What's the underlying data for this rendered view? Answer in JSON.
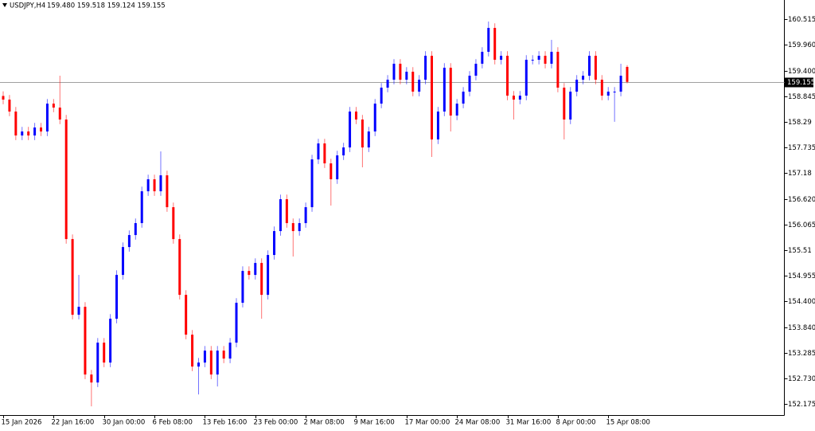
{
  "chart_data": {
    "type": "candlestick",
    "title": "USDJPY,H4",
    "subtitle": "159.480 159.518 159.124 159.155",
    "up_color": "#0000ff",
    "down_color": "#ff0000",
    "current_price": 159.155,
    "ylim": [
      151.933,
      160.93
    ],
    "yticks": [
      160.515,
      {
        "value": 159.96,
        "label": "159.960"
      },
      {
        "value": 159.4,
        "label": "159.400"
      },
      158.845,
      158.29,
      157.735,
      157.18,
      {
        "value": 156.62,
        "label": "156.620"
      },
      156.065,
      155.51,
      154.955,
      {
        "value": 154.4,
        "label": "154.400"
      },
      {
        "value": 153.84,
        "label": "153.840"
      },
      153.285,
      {
        "value": 152.73,
        "label": "152.730"
      },
      152.175
    ],
    "categories": [
      "15 Jan 2026",
      null,
      null,
      null,
      null,
      null,
      null,
      null,
      "22 Jan 16:00",
      null,
      null,
      null,
      null,
      null,
      null,
      null,
      "30 Jan 00:00",
      null,
      null,
      null,
      null,
      null,
      null,
      null,
      "6 Feb 08:00",
      null,
      null,
      null,
      null,
      null,
      null,
      null,
      "13 Feb 16:00",
      null,
      null,
      null,
      null,
      null,
      null,
      null,
      "23 Feb 00:00",
      null,
      null,
      null,
      null,
      null,
      null,
      null,
      "2 Mar 08:00",
      null,
      null,
      null,
      null,
      null,
      null,
      null,
      "9 Mar 16:00",
      null,
      null,
      null,
      null,
      null,
      null,
      null,
      "17 Mar 00:00",
      null,
      null,
      null,
      null,
      null,
      null,
      null,
      "24 Mar 08:00",
      null,
      null,
      null,
      null,
      null,
      null,
      null,
      "31 Mar 16:00",
      null,
      null,
      null,
      null,
      null,
      null,
      null,
      "8 Apr 00:00",
      null,
      null,
      null,
      null,
      null,
      null,
      null,
      "15 Apr 08:00",
      null,
      null,
      null
    ],
    "open": [
      158.85,
      158.771,
      158.512,
      157.993,
      158.08,
      157.993,
      158.166,
      158.08,
      158.684,
      158.598,
      158.339,
      155.748,
      154.107,
      154.28,
      152.812,
      152.639,
      153.503,
      153.071,
      154.021,
      154.971,
      155.575,
      155.835,
      156.094,
      156.784,
      157.044,
      156.784,
      157.13,
      156.439,
      155.748,
      154.539,
      153.676,
      152.985,
      153.071,
      153.33,
      152.812,
      153.33,
      153.158,
      153.503,
      154.367,
      155.057,
      154.971,
      155.23,
      154.539,
      155.403,
      155.921,
      156.612,
      156.094,
      155.921,
      156.094,
      156.439,
      157.475,
      157.821,
      157.389,
      157.044,
      157.562,
      157.734,
      158.512,
      158.339,
      157.734,
      158.08,
      158.684,
      159.03,
      159.202,
      159.548,
      159.202,
      159.375,
      158.943,
      159.202,
      159.721,
      157.907,
      158.512,
      159.461,
      158.425,
      158.684,
      158.943,
      159.289,
      159.548,
      159.807,
      160.325,
      159.634,
      159.721,
      158.857,
      158.771,
      158.857,
      159.634,
      159.634,
      159.721,
      159.548,
      159.807,
      159.03,
      158.339,
      158.943,
      159.202,
      159.289,
      159.721,
      159.202,
      158.857,
      158.943,
      158.943,
      159.48
    ],
    "high": [
      158.95,
      158.871,
      158.612,
      158.18,
      158.18,
      158.266,
      158.266,
      158.784,
      158.784,
      159.289,
      158.439,
      155.848,
      154.971,
      154.38,
      152.912,
      153.603,
      153.603,
      154.121,
      155.071,
      155.675,
      155.935,
      156.194,
      156.884,
      157.144,
      157.144,
      157.648,
      157.23,
      156.539,
      155.848,
      154.639,
      153.776,
      153.171,
      153.43,
      153.43,
      153.43,
      153.43,
      153.603,
      154.467,
      155.157,
      155.157,
      155.33,
      155.33,
      155.503,
      156.021,
      156.712,
      156.712,
      156.194,
      156.194,
      156.539,
      157.575,
      157.921,
      157.921,
      157.489,
      157.662,
      157.834,
      158.612,
      158.612,
      158.439,
      158.18,
      158.784,
      159.13,
      159.302,
      159.648,
      159.648,
      159.475,
      159.475,
      159.302,
      159.821,
      159.821,
      158.612,
      159.561,
      159.561,
      158.784,
      159.043,
      159.389,
      159.648,
      159.907,
      160.463,
      160.425,
      159.821,
      159.821,
      158.957,
      158.957,
      159.734,
      159.734,
      159.821,
      159.821,
      160.066,
      159.907,
      159.13,
      159.043,
      159.302,
      159.389,
      159.821,
      159.821,
      159.302,
      159.043,
      159.043,
      159.548,
      159.518
    ],
    "low": [
      158.671,
      158.412,
      157.893,
      157.893,
      157.893,
      157.893,
      157.98,
      157.98,
      158.498,
      158.239,
      155.648,
      154.007,
      154.007,
      152.712,
      152.122,
      152.539,
      152.971,
      152.971,
      153.921,
      154.871,
      155.475,
      155.735,
      155.994,
      156.684,
      156.684,
      156.684,
      156.339,
      155.648,
      154.439,
      153.576,
      152.885,
      152.38,
      152.971,
      152.712,
      152.553,
      153.058,
      153.058,
      153.403,
      154.267,
      154.871,
      154.871,
      154.021,
      154.439,
      155.303,
      155.821,
      155.994,
      155.37,
      155.821,
      155.994,
      156.339,
      157.375,
      157.289,
      156.474,
      156.944,
      157.462,
      157.634,
      158.239,
      157.303,
      157.634,
      157.98,
      158.584,
      158.93,
      159.102,
      159.102,
      159.102,
      158.843,
      158.843,
      159.102,
      157.527,
      157.807,
      158.412,
      158.08,
      158.325,
      158.584,
      158.843,
      159.189,
      159.448,
      159.707,
      159.534,
      159.534,
      158.757,
      158.339,
      158.671,
      158.757,
      159.534,
      159.534,
      159.448,
      159.448,
      158.93,
      157.907,
      158.239,
      158.843,
      159.102,
      159.189,
      159.102,
      158.757,
      158.757,
      158.29,
      158.843,
      159.124
    ],
    "close": [
      158.771,
      158.512,
      157.993,
      158.08,
      157.993,
      158.166,
      158.08,
      158.684,
      158.598,
      158.339,
      155.748,
      154.107,
      154.28,
      152.812,
      152.639,
      153.503,
      153.071,
      154.021,
      154.971,
      155.575,
      155.835,
      156.094,
      156.784,
      157.044,
      156.784,
      157.13,
      156.439,
      155.748,
      154.539,
      153.676,
      152.985,
      153.071,
      153.33,
      152.812,
      153.33,
      153.158,
      153.503,
      154.367,
      155.057,
      154.971,
      155.23,
      154.539,
      155.403,
      155.921,
      156.612,
      156.094,
      155.921,
      156.094,
      156.439,
      157.475,
      157.821,
      157.389,
      157.044,
      157.562,
      157.734,
      158.512,
      158.339,
      157.734,
      158.08,
      158.684,
      159.03,
      159.202,
      159.548,
      159.202,
      159.375,
      158.943,
      159.202,
      159.721,
      157.907,
      158.512,
      159.461,
      158.425,
      158.684,
      158.943,
      159.289,
      159.548,
      159.807,
      160.325,
      159.634,
      159.721,
      158.857,
      158.771,
      158.857,
      159.634,
      159.634,
      159.721,
      159.548,
      159.807,
      159.03,
      158.339,
      158.943,
      159.202,
      159.289,
      159.721,
      159.202,
      158.857,
      158.943,
      158.943,
      159.289,
      159.155
    ]
  }
}
